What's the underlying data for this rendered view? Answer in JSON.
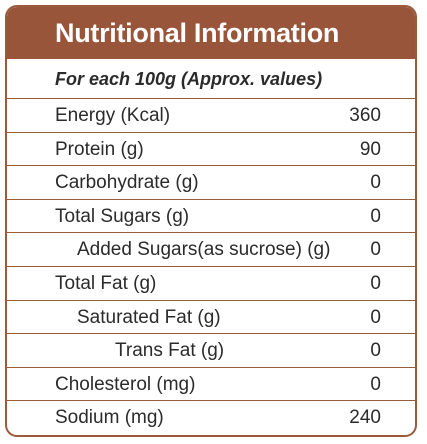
{
  "title": "Nutritional Information",
  "subtitle": "For each 100g (Approx. values)",
  "rows": [
    {
      "label": "Energy  (Kcal)",
      "value": "360"
    },
    {
      "label": "Protein  (g)",
      "value": "90"
    },
    {
      "label": "Carbohydrate  (g)",
      "value": "0"
    },
    {
      "label": "Total Sugars  (g)",
      "value": "0"
    },
    {
      "label": "Added Sugars(as sucrose) (g)",
      "value": "0"
    },
    {
      "label": "Total Fat  (g)",
      "value": "0"
    },
    {
      "label": "Saturated Fat  (g)",
      "value": "0"
    },
    {
      "label": "Trans Fat  (g)",
      "value": "0"
    },
    {
      "label": "Cholesterol  (mg)",
      "value": "0"
    },
    {
      "label": "Sodium  (mg)",
      "value": "240"
    }
  ],
  "colors": {
    "accent": "#98553a",
    "text": "#2b2b2b"
  }
}
